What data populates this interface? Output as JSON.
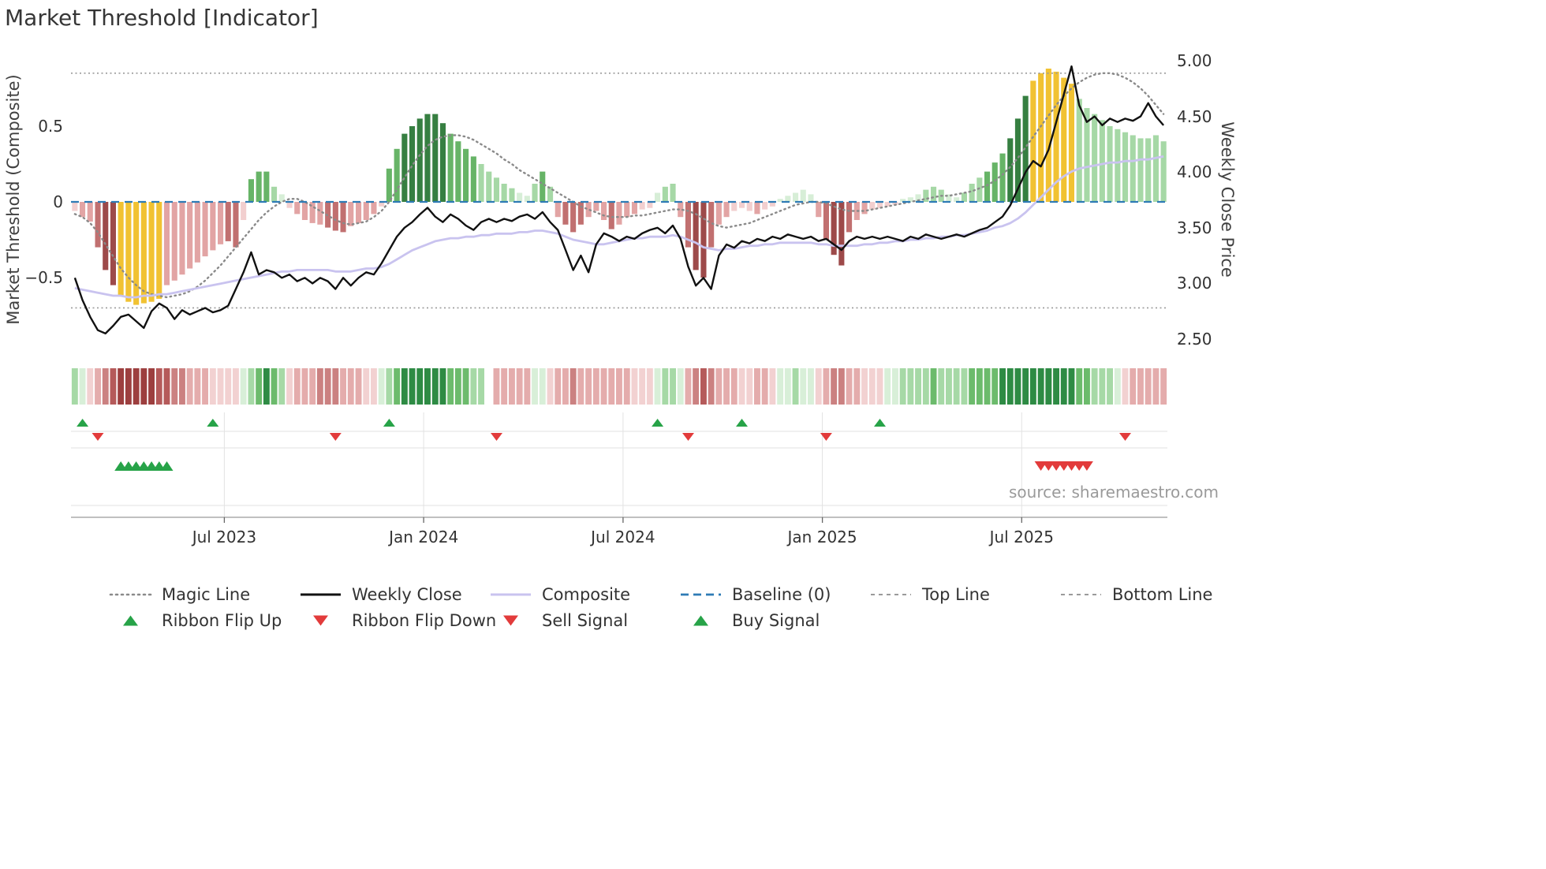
{
  "title": "Market Threshold [Indicator]",
  "source": "source: sharemaestro.com",
  "colors": {
    "background": "#ffffff",
    "text": "#333333",
    "muted_text": "#9a9a9a",
    "magic_line": "#8a8a8a",
    "weekly_close": "#111111",
    "composite": "#c9c3ef",
    "baseline": "#2e7bb5",
    "guide_line": "#9a9a9a",
    "grid": "#e2e2e2",
    "axis_line": "#9a9a9a",
    "signal_up": "#27a348",
    "signal_down": "#e23b3b",
    "bar_palette": {
      "dr": "#9d4a4a",
      "r": "#c17070",
      "lr": "#e2a4a4",
      "pr": "#f2cfcf",
      "pg": "#d7eed7",
      "lg": "#a6d8a6",
      "g": "#67b467",
      "dg": "#367f41",
      "y": "#f1c232"
    },
    "ribbon_palette": [
      "#9d3f3f",
      "#b55a5a",
      "#cb8181",
      "#e4acac",
      "#f2d1d1",
      "#d8efd8",
      "#a6d9a6",
      "#6cbb6c",
      "#2e8b44",
      "#ffffff"
    ]
  },
  "chart_data": {
    "type": "combo_bar_line",
    "n_points": 143,
    "x_unit": "week",
    "x_ticks": [
      {
        "week": 20,
        "label": "Jul 2023"
      },
      {
        "week": 46,
        "label": "Jan 2024"
      },
      {
        "week": 72,
        "label": "Jul 2024"
      },
      {
        "week": 98,
        "label": "Jan 2025"
      },
      {
        "week": 124,
        "label": "Jul 2025"
      }
    ],
    "left_axis": {
      "label": "Market Threshold (Composite)",
      "range": [
        -1.03,
        1.04
      ],
      "ticks": [
        {
          "value": 0.5,
          "label": "0.5"
        },
        {
          "value": 0,
          "label": "0"
        },
        {
          "value": -0.5,
          "label": "−0.5"
        }
      ]
    },
    "right_axis": {
      "label": "Weekly Close Price",
      "range": [
        2.28,
        5.12
      ],
      "ticks": [
        {
          "value": 5.0,
          "label": "5.00"
        },
        {
          "value": 4.5,
          "label": "4.50"
        },
        {
          "value": 4.0,
          "label": "4.00"
        },
        {
          "value": 3.5,
          "label": "3.50"
        },
        {
          "value": 3.0,
          "label": "3.00"
        },
        {
          "value": 2.5,
          "label": "2.50"
        }
      ]
    },
    "baseline": 0,
    "top_line": 0.85,
    "bottom_line": -0.7,
    "histogram": {
      "name": "Market Threshold (Composite) histogram",
      "values": [
        -0.06,
        -0.1,
        -0.13,
        -0.3,
        -0.45,
        -0.55,
        -0.62,
        -0.66,
        -0.68,
        -0.67,
        -0.66,
        -0.64,
        -0.55,
        -0.52,
        -0.48,
        -0.44,
        -0.4,
        -0.36,
        -0.32,
        -0.28,
        -0.26,
        -0.3,
        -0.12,
        0.15,
        0.2,
        0.2,
        0.1,
        0.05,
        -0.04,
        -0.08,
        -0.12,
        -0.14,
        -0.15,
        -0.17,
        -0.19,
        -0.2,
        -0.16,
        -0.14,
        -0.12,
        -0.08,
        -0.03,
        0.22,
        0.35,
        0.45,
        0.5,
        0.55,
        0.58,
        0.58,
        0.52,
        0.45,
        0.4,
        0.35,
        0.3,
        0.25,
        0.2,
        0.16,
        0.12,
        0.09,
        0.06,
        0.04,
        0.12,
        0.2,
        0.1,
        -0.1,
        -0.15,
        -0.2,
        -0.15,
        -0.1,
        -0.06,
        -0.12,
        -0.18,
        -0.15,
        -0.1,
        -0.08,
        -0.05,
        -0.04,
        0.06,
        0.1,
        0.12,
        -0.1,
        -0.3,
        -0.45,
        -0.5,
        -0.3,
        -0.15,
        -0.1,
        -0.06,
        -0.04,
        -0.06,
        -0.08,
        -0.05,
        -0.03,
        0.02,
        0.04,
        0.06,
        0.08,
        0.05,
        -0.1,
        -0.25,
        -0.35,
        -0.42,
        -0.2,
        -0.12,
        -0.08,
        -0.05,
        -0.04,
        -0.03,
        -0.02,
        0.02,
        0.03,
        0.05,
        0.08,
        0.1,
        0.08,
        0.05,
        0.03,
        0.06,
        0.12,
        0.16,
        0.2,
        0.26,
        0.32,
        0.42,
        0.55,
        0.7,
        0.8,
        0.85,
        0.88,
        0.86,
        0.82,
        0.78,
        0.68,
        0.62,
        0.58,
        0.54,
        0.5,
        0.48,
        0.46,
        0.44,
        0.42,
        0.42,
        0.44,
        0.4
      ],
      "colors": [
        "pr",
        "lr",
        "lr",
        "r",
        "dr",
        "dr",
        "y",
        "y",
        "y",
        "y",
        "y",
        "y",
        "lr",
        "lr",
        "lr",
        "lr",
        "lr",
        "lr",
        "lr",
        "lr",
        "r",
        "r",
        "pr",
        "g",
        "g",
        "g",
        "lg",
        "pg",
        "pr",
        "lr",
        "lr",
        "lr",
        "lr",
        "r",
        "r",
        "r",
        "lr",
        "lr",
        "lr",
        "lr",
        "pr",
        "g",
        "g",
        "dg",
        "dg",
        "dg",
        "dg",
        "dg",
        "dg",
        "g",
        "g",
        "g",
        "g",
        "lg",
        "lg",
        "lg",
        "lg",
        "lg",
        "pg",
        "pg",
        "lg",
        "g",
        "lg",
        "lr",
        "r",
        "r",
        "r",
        "lr",
        "lr",
        "lr",
        "r",
        "lr",
        "lr",
        "lr",
        "pr",
        "pr",
        "pg",
        "lg",
        "lg",
        "lr",
        "r",
        "dr",
        "dr",
        "r",
        "lr",
        "lr",
        "pr",
        "pr",
        "pr",
        "lr",
        "pr",
        "pr",
        "pg",
        "pg",
        "pg",
        "pg",
        "pg",
        "lr",
        "r",
        "dr",
        "dr",
        "r",
        "lr",
        "lr",
        "pr",
        "pr",
        "pr",
        "pr",
        "pg",
        "pg",
        "pg",
        "lg",
        "lg",
        "lg",
        "pg",
        "pg",
        "lg",
        "lg",
        "lg",
        "g",
        "g",
        "g",
        "dg",
        "dg",
        "dg",
        "y",
        "y",
        "y",
        "y",
        "y",
        "y",
        "lg",
        "lg",
        "lg",
        "lg",
        "lg",
        "lg",
        "lg",
        "lg",
        "lg",
        "lg",
        "lg",
        "lg"
      ]
    },
    "lines": {
      "weekly_close": [
        3.05,
        2.85,
        2.7,
        2.58,
        2.55,
        2.62,
        2.7,
        2.72,
        2.66,
        2.6,
        2.75,
        2.82,
        2.78,
        2.68,
        2.76,
        2.72,
        2.75,
        2.78,
        2.74,
        2.76,
        2.8,
        2.95,
        3.1,
        3.28,
        3.08,
        3.12,
        3.1,
        3.05,
        3.08,
        3.02,
        3.05,
        3.0,
        3.05,
        3.02,
        2.95,
        3.05,
        2.98,
        3.05,
        3.1,
        3.08,
        3.18,
        3.3,
        3.42,
        3.5,
        3.55,
        3.62,
        3.68,
        3.6,
        3.55,
        3.62,
        3.58,
        3.52,
        3.48,
        3.55,
        3.58,
        3.55,
        3.58,
        3.56,
        3.6,
        3.62,
        3.58,
        3.64,
        3.55,
        3.48,
        3.3,
        3.12,
        3.25,
        3.1,
        3.35,
        3.45,
        3.42,
        3.38,
        3.42,
        3.4,
        3.45,
        3.48,
        3.5,
        3.45,
        3.52,
        3.4,
        3.15,
        2.98,
        3.05,
        2.95,
        3.25,
        3.35,
        3.32,
        3.38,
        3.36,
        3.4,
        3.38,
        3.42,
        3.4,
        3.44,
        3.42,
        3.4,
        3.42,
        3.38,
        3.4,
        3.35,
        3.3,
        3.38,
        3.42,
        3.4,
        3.42,
        3.4,
        3.42,
        3.4,
        3.38,
        3.42,
        3.4,
        3.44,
        3.42,
        3.4,
        3.42,
        3.44,
        3.42,
        3.45,
        3.48,
        3.5,
        3.55,
        3.6,
        3.7,
        3.85,
        4.0,
        4.1,
        4.05,
        4.2,
        4.45,
        4.7,
        4.95,
        4.6,
        4.45,
        4.5,
        4.42,
        4.48,
        4.45,
        4.48,
        4.46,
        4.5,
        4.62,
        4.5,
        4.42
      ],
      "composite": [
        -0.57,
        -0.58,
        -0.59,
        -0.6,
        -0.61,
        -0.62,
        -0.62,
        -0.63,
        -0.63,
        -0.62,
        -0.62,
        -0.61,
        -0.61,
        -0.6,
        -0.59,
        -0.58,
        -0.57,
        -0.56,
        -0.55,
        -0.54,
        -0.53,
        -0.52,
        -0.51,
        -0.5,
        -0.49,
        -0.48,
        -0.47,
        -0.46,
        -0.46,
        -0.45,
        -0.45,
        -0.45,
        -0.45,
        -0.45,
        -0.46,
        -0.46,
        -0.46,
        -0.45,
        -0.44,
        -0.44,
        -0.43,
        -0.41,
        -0.38,
        -0.35,
        -0.32,
        -0.3,
        -0.28,
        -0.26,
        -0.25,
        -0.24,
        -0.24,
        -0.23,
        -0.23,
        -0.22,
        -0.22,
        -0.21,
        -0.21,
        -0.21,
        -0.2,
        -0.2,
        -0.19,
        -0.19,
        -0.2,
        -0.21,
        -0.23,
        -0.25,
        -0.26,
        -0.27,
        -0.28,
        -0.28,
        -0.27,
        -0.26,
        -0.25,
        -0.24,
        -0.24,
        -0.23,
        -0.23,
        -0.23,
        -0.22,
        -0.23,
        -0.25,
        -0.27,
        -0.3,
        -0.31,
        -0.32,
        -0.31,
        -0.31,
        -0.3,
        -0.29,
        -0.29,
        -0.28,
        -0.28,
        -0.27,
        -0.27,
        -0.27,
        -0.27,
        -0.27,
        -0.28,
        -0.28,
        -0.29,
        -0.29,
        -0.29,
        -0.29,
        -0.28,
        -0.28,
        -0.27,
        -0.27,
        -0.26,
        -0.26,
        -0.25,
        -0.25,
        -0.24,
        -0.24,
        -0.23,
        -0.23,
        -0.22,
        -0.22,
        -0.21,
        -0.2,
        -0.19,
        -0.17,
        -0.16,
        -0.14,
        -0.11,
        -0.07,
        -0.02,
        0.03,
        0.08,
        0.13,
        0.17,
        0.2,
        0.22,
        0.23,
        0.24,
        0.25,
        0.26,
        0.26,
        0.27,
        0.27,
        0.28,
        0.28,
        0.29,
        0.3
      ],
      "magic_line": [
        -0.08,
        -0.1,
        -0.14,
        -0.2,
        -0.28,
        -0.36,
        -0.44,
        -0.5,
        -0.55,
        -0.59,
        -0.61,
        -0.62,
        -0.63,
        -0.62,
        -0.61,
        -0.59,
        -0.56,
        -0.52,
        -0.47,
        -0.42,
        -0.36,
        -0.3,
        -0.24,
        -0.18,
        -0.12,
        -0.07,
        -0.03,
        0.0,
        0.02,
        0.02,
        0.0,
        -0.03,
        -0.06,
        -0.09,
        -0.12,
        -0.14,
        -0.15,
        -0.14,
        -0.13,
        -0.1,
        -0.06,
        0.0,
        0.08,
        0.16,
        0.24,
        0.31,
        0.37,
        0.41,
        0.43,
        0.44,
        0.44,
        0.43,
        0.41,
        0.38,
        0.35,
        0.32,
        0.28,
        0.25,
        0.21,
        0.18,
        0.15,
        0.12,
        0.09,
        0.06,
        0.03,
        0.0,
        -0.03,
        -0.05,
        -0.07,
        -0.09,
        -0.1,
        -0.1,
        -0.1,
        -0.09,
        -0.09,
        -0.08,
        -0.07,
        -0.06,
        -0.05,
        -0.05,
        -0.06,
        -0.08,
        -0.11,
        -0.14,
        -0.16,
        -0.17,
        -0.16,
        -0.15,
        -0.14,
        -0.12,
        -0.1,
        -0.08,
        -0.06,
        -0.04,
        -0.02,
        -0.01,
        0.0,
        0.0,
        -0.01,
        -0.03,
        -0.05,
        -0.06,
        -0.06,
        -0.06,
        -0.05,
        -0.04,
        -0.03,
        -0.02,
        -0.01,
        0.0,
        0.01,
        0.02,
        0.03,
        0.04,
        0.04,
        0.05,
        0.06,
        0.07,
        0.09,
        0.11,
        0.14,
        0.18,
        0.23,
        0.29,
        0.36,
        0.43,
        0.5,
        0.57,
        0.64,
        0.7,
        0.75,
        0.79,
        0.82,
        0.84,
        0.85,
        0.85,
        0.84,
        0.82,
        0.79,
        0.75,
        0.7,
        0.64,
        0.58
      ]
    },
    "ribbon": [
      6,
      5,
      4,
      3,
      2,
      1,
      0,
      0,
      0,
      0,
      0,
      1,
      1,
      2,
      2,
      3,
      3,
      3,
      4,
      4,
      4,
      4,
      5,
      6,
      7,
      8,
      7,
      6,
      4,
      3,
      3,
      3,
      2,
      2,
      2,
      3,
      3,
      3,
      4,
      4,
      5,
      6,
      7,
      8,
      8,
      8,
      8,
      8,
      8,
      7,
      7,
      7,
      6,
      6,
      9,
      3,
      3,
      3,
      3,
      3,
      5,
      5,
      4,
      3,
      3,
      2,
      3,
      3,
      3,
      3,
      3,
      3,
      3,
      4,
      4,
      4,
      5,
      6,
      6,
      5,
      3,
      2,
      1,
      2,
      3,
      3,
      3,
      4,
      4,
      3,
      3,
      4,
      5,
      5,
      6,
      5,
      5,
      4,
      3,
      2,
      2,
      3,
      3,
      4,
      4,
      4,
      5,
      5,
      6,
      6,
      6,
      6,
      7,
      6,
      6,
      6,
      6,
      7,
      7,
      7,
      7,
      8,
      8,
      8,
      8,
      8,
      8,
      8,
      8,
      8,
      8,
      7,
      7,
      6,
      6,
      6,
      5,
      4,
      3,
      3,
      3,
      3,
      3
    ],
    "signals": {
      "ribbon_flip_up_weeks": [
        1,
        18,
        41,
        76,
        87,
        105
      ],
      "ribbon_flip_down_weeks": [
        3,
        34,
        55,
        80,
        98,
        137
      ],
      "buy_signal_weeks": [
        6,
        7,
        8,
        9,
        10,
        11,
        12
      ],
      "sell_signal_weeks": [
        126,
        127,
        128,
        129,
        130,
        131,
        132
      ]
    }
  },
  "legend": {
    "rows": [
      [
        {
          "type": "line-dotted",
          "color": "#8a8a8a",
          "label": "Magic Line"
        },
        {
          "type": "line",
          "color": "#111111",
          "label": "Weekly Close"
        },
        {
          "type": "line",
          "color": "#c9c3ef",
          "label": "Composite"
        },
        {
          "type": "line-dashed",
          "color": "#2e7bb5",
          "label": "Baseline (0)"
        },
        {
          "type": "line-dash-small",
          "color": "#9a9a9a",
          "label": "Top Line"
        },
        {
          "type": "line-dash-small",
          "color": "#9a9a9a",
          "label": "Bottom Line"
        }
      ],
      [
        {
          "type": "tri-up",
          "color": "#27a348",
          "label": "Ribbon Flip Up"
        },
        {
          "type": "tri-down",
          "color": "#e23b3b",
          "label": "Ribbon Flip Down"
        },
        {
          "type": "tri-down",
          "color": "#e23b3b",
          "label": "Sell Signal"
        },
        {
          "type": "tri-up",
          "color": "#27a348",
          "label": "Buy Signal"
        }
      ]
    ]
  }
}
